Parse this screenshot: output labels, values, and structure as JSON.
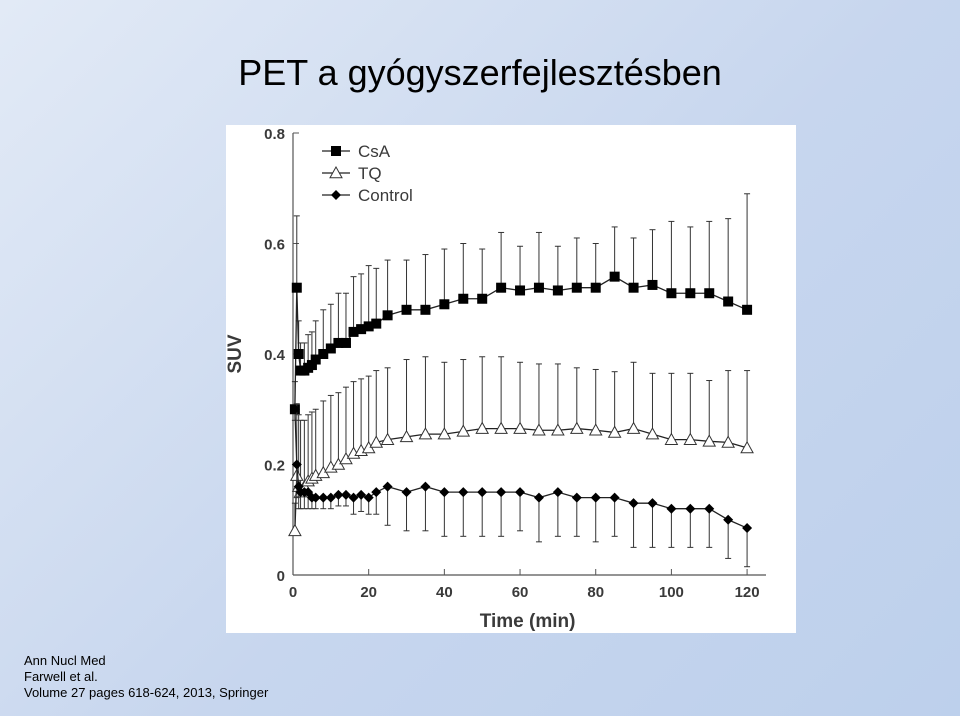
{
  "slide": {
    "title": "PET a gyógyszerfejlesztésben"
  },
  "citation": {
    "journal": "Ann Nucl Med",
    "authors": "Farwell et al.",
    "volume": "Volume 27 pages 618-624, 2013, Springer"
  },
  "chart_data": {
    "type": "line",
    "title": "",
    "xlabel": "Time (min)",
    "ylabel": "SUV",
    "xlim": [
      0,
      125
    ],
    "ylim": [
      0,
      0.8
    ],
    "x_ticks": [
      "0",
      "20",
      "40",
      "60",
      "80",
      "100",
      "120"
    ],
    "y_ticks": [
      "0",
      "0.2",
      "0.4",
      "0.6",
      "0.8"
    ],
    "legend_position": "top-left",
    "grid": false,
    "series": [
      {
        "name": "CsA",
        "marker": "filled-square",
        "color": "#000000",
        "x": [
          0.5,
          1,
          1.5,
          2,
          3,
          4,
          5,
          6,
          8,
          10,
          12,
          14,
          16,
          18,
          20,
          22,
          25,
          30,
          35,
          40,
          45,
          50,
          55,
          60,
          65,
          70,
          75,
          80,
          85,
          90,
          95,
          100,
          105,
          110,
          115,
          120
        ],
        "y": [
          0.3,
          0.52,
          0.4,
          0.37,
          0.37,
          0.375,
          0.38,
          0.39,
          0.4,
          0.41,
          0.42,
          0.42,
          0.44,
          0.445,
          0.45,
          0.455,
          0.47,
          0.48,
          0.48,
          0.49,
          0.5,
          0.5,
          0.52,
          0.515,
          0.52,
          0.515,
          0.52,
          0.52,
          0.54,
          0.52,
          0.525,
          0.51,
          0.51,
          0.51,
          0.495,
          0.48
        ],
        "error": [
          0.05,
          0.13,
          0.06,
          0.05,
          0.05,
          0.06,
          0.06,
          0.07,
          0.08,
          0.08,
          0.09,
          0.09,
          0.1,
          0.1,
          0.11,
          0.1,
          0.1,
          0.09,
          0.1,
          0.1,
          0.1,
          0.09,
          0.1,
          0.08,
          0.1,
          0.08,
          0.09,
          0.08,
          0.09,
          0.09,
          0.1,
          0.13,
          0.12,
          0.13,
          0.15,
          0.21
        ]
      },
      {
        "name": "TQ",
        "marker": "open-triangle",
        "color": "#000000",
        "x": [
          0.5,
          1,
          1.5,
          2,
          3,
          4,
          5,
          6,
          8,
          10,
          12,
          14,
          16,
          18,
          20,
          22,
          25,
          30,
          35,
          40,
          45,
          50,
          55,
          60,
          65,
          70,
          75,
          80,
          85,
          90,
          95,
          100,
          105,
          110,
          115,
          120
        ],
        "y": [
          0.08,
          0.18,
          0.16,
          0.15,
          0.16,
          0.17,
          0.175,
          0.18,
          0.185,
          0.195,
          0.2,
          0.21,
          0.22,
          0.225,
          0.23,
          0.24,
          0.245,
          0.25,
          0.255,
          0.255,
          0.26,
          0.265,
          0.265,
          0.265,
          0.262,
          0.262,
          0.265,
          0.262,
          0.258,
          0.265,
          0.255,
          0.245,
          0.245,
          0.242,
          0.24,
          0.23
        ],
        "error": [
          0.05,
          0.13,
          0.13,
          0.13,
          0.12,
          0.12,
          0.12,
          0.12,
          0.13,
          0.13,
          0.13,
          0.13,
          0.13,
          0.13,
          0.13,
          0.13,
          0.13,
          0.14,
          0.14,
          0.13,
          0.13,
          0.13,
          0.13,
          0.12,
          0.12,
          0.12,
          0.11,
          0.11,
          0.11,
          0.12,
          0.11,
          0.12,
          0.12,
          0.11,
          0.13,
          0.14
        ]
      },
      {
        "name": "Control",
        "marker": "filled-diamond",
        "color": "#000000",
        "x": [
          0.5,
          1,
          1.5,
          2,
          3,
          4,
          5,
          6,
          8,
          10,
          12,
          14,
          16,
          18,
          20,
          22,
          25,
          30,
          35,
          40,
          45,
          50,
          55,
          60,
          65,
          70,
          75,
          80,
          85,
          90,
          95,
          100,
          105,
          110,
          115,
          120
        ],
        "y": [
          0.3,
          0.2,
          0.16,
          0.15,
          0.15,
          0.15,
          0.14,
          0.14,
          0.14,
          0.14,
          0.145,
          0.145,
          0.14,
          0.145,
          0.14,
          0.15,
          0.16,
          0.15,
          0.16,
          0.15,
          0.15,
          0.15,
          0.15,
          0.15,
          0.14,
          0.15,
          0.14,
          0.14,
          0.14,
          0.13,
          0.13,
          0.12,
          0.12,
          0.12,
          0.1,
          0.085
        ],
        "error": [
          0.02,
          0.06,
          0.04,
          0.03,
          0.03,
          0.03,
          0.02,
          0.02,
          0.02,
          0.02,
          0.02,
          0.02,
          0.03,
          0.03,
          0.03,
          0.04,
          0.07,
          0.07,
          0.08,
          0.08,
          0.08,
          0.08,
          0.08,
          0.07,
          0.08,
          0.08,
          0.07,
          0.08,
          0.07,
          0.08,
          0.08,
          0.07,
          0.07,
          0.07,
          0.07,
          0.07
        ]
      }
    ]
  }
}
